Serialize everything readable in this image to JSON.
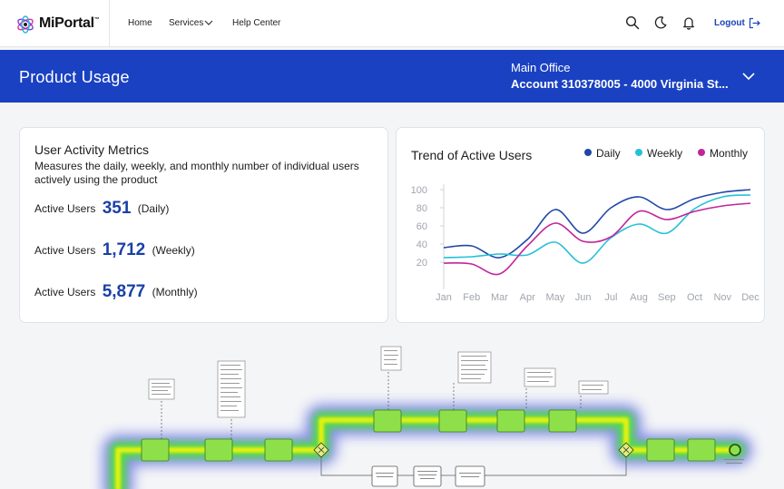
{
  "brand": {
    "name": "MiPortal",
    "tm": "™"
  },
  "nav": {
    "links": [
      "Home",
      "Services",
      "Help Center"
    ],
    "logout_label": "Logout"
  },
  "icons": [
    "search-icon",
    "moon-icon",
    "bell-icon",
    "logout-icon",
    "chevron-down-icon"
  ],
  "header": {
    "title": "Product Usage",
    "office": "Main Office",
    "account": "Account 310378005 - 4000 Virginia St..."
  },
  "metrics": {
    "title": "User Activity Metrics",
    "description": "Measures the daily, weekly, and monthly number of individual users actively using the product",
    "rows": [
      {
        "label": "Active Users",
        "value": "351",
        "period": "(Daily)"
      },
      {
        "label": "Active Users",
        "value": "1,712",
        "period": "(Weekly)"
      },
      {
        "label": "Active Users",
        "value": "5,877",
        "period": "(Monthly)"
      }
    ]
  },
  "colors": {
    "brand_blue": "#1a41c2",
    "accent_value": "#1a3fa8",
    "daily": "#1f47a6",
    "weekly": "#25c1d9",
    "monthly": "#c2259b",
    "heat_core": "#e7f20a",
    "heat_mid": "#4de33a",
    "heat_outer": "#2a3bd6"
  },
  "chart_data": {
    "type": "line",
    "title": "Trend of Active Users",
    "categories": [
      "Jan",
      "Feb",
      "Mar",
      "Apr",
      "May",
      "Jun",
      "Jul",
      "Aug",
      "Sep",
      "Oct",
      "Nov",
      "Dec"
    ],
    "ylim": [
      0,
      100
    ],
    "yticks": [
      20,
      40,
      60,
      80,
      100
    ],
    "grid": "y-only",
    "legend_position": "top-right",
    "series": [
      {
        "name": "Daily",
        "values": [
          36,
          38,
          25,
          45,
          78,
          52,
          80,
          92,
          78,
          90,
          97,
          100
        ]
      },
      {
        "name": "Weekly",
        "values": [
          25,
          26,
          29,
          28,
          42,
          19,
          47,
          62,
          52,
          79,
          92,
          94
        ]
      },
      {
        "name": "Monthly",
        "values": [
          19,
          18,
          7,
          38,
          63,
          43,
          48,
          76,
          67,
          76,
          82,
          85
        ]
      }
    ]
  },
  "process": {
    "nodes": 15,
    "gateways": 2,
    "end_events": 1
  }
}
